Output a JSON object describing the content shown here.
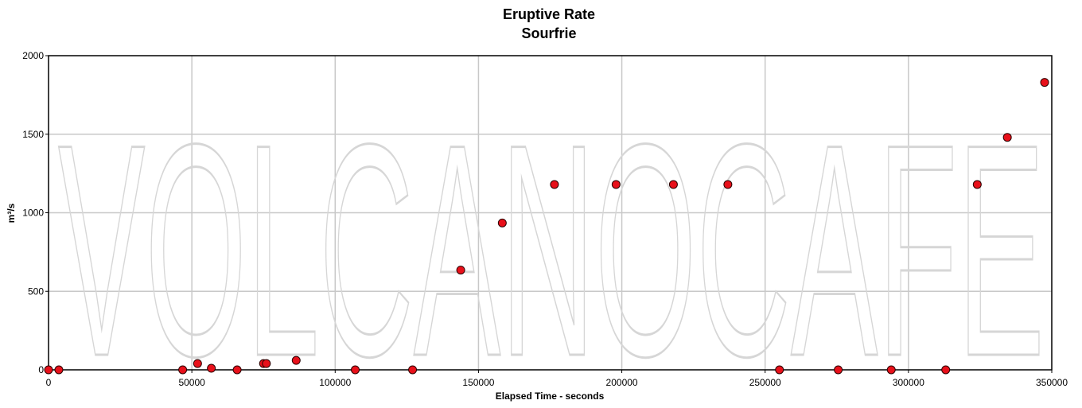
{
  "chart_data": {
    "type": "scatter",
    "title": "Eruptive Rate",
    "subtitle": "Sourfrie",
    "xlabel": "Elapsed Time - seconds",
    "ylabel": "m³/s",
    "xlim": [
      0,
      350000
    ],
    "ylim": [
      0,
      2000
    ],
    "x_ticks": [
      0,
      50000,
      100000,
      150000,
      200000,
      250000,
      300000,
      350000
    ],
    "y_ticks": [
      0,
      500,
      1000,
      1500,
      2000
    ],
    "grid": true,
    "legend": "none",
    "watermark": "VOLCANOCAFE",
    "colors": {
      "marker_fill": "#e8101a",
      "marker_stroke": "#2a0000",
      "grid": "#c8c8c8",
      "watermark": "#d6d6d6",
      "axis": "#000000"
    },
    "points": [
      {
        "x": 0,
        "y": 0
      },
      {
        "x": 3600,
        "y": 0
      },
      {
        "x": 46800,
        "y": 0
      },
      {
        "x": 52000,
        "y": 40
      },
      {
        "x": 56800,
        "y": 10
      },
      {
        "x": 65800,
        "y": 0
      },
      {
        "x": 75000,
        "y": 40
      },
      {
        "x": 76000,
        "y": 40
      },
      {
        "x": 86400,
        "y": 60
      },
      {
        "x": 107000,
        "y": 0
      },
      {
        "x": 127000,
        "y": 0
      },
      {
        "x": 143800,
        "y": 635
      },
      {
        "x": 158300,
        "y": 935
      },
      {
        "x": 176500,
        "y": 1180
      },
      {
        "x": 198000,
        "y": 1180
      },
      {
        "x": 218000,
        "y": 1180
      },
      {
        "x": 237000,
        "y": 1180
      },
      {
        "x": 255000,
        "y": 0
      },
      {
        "x": 275500,
        "y": 0
      },
      {
        "x": 294000,
        "y": 0
      },
      {
        "x": 313000,
        "y": 0
      },
      {
        "x": 324000,
        "y": 1180
      },
      {
        "x": 334500,
        "y": 1480
      },
      {
        "x": 347500,
        "y": 1830
      }
    ]
  }
}
